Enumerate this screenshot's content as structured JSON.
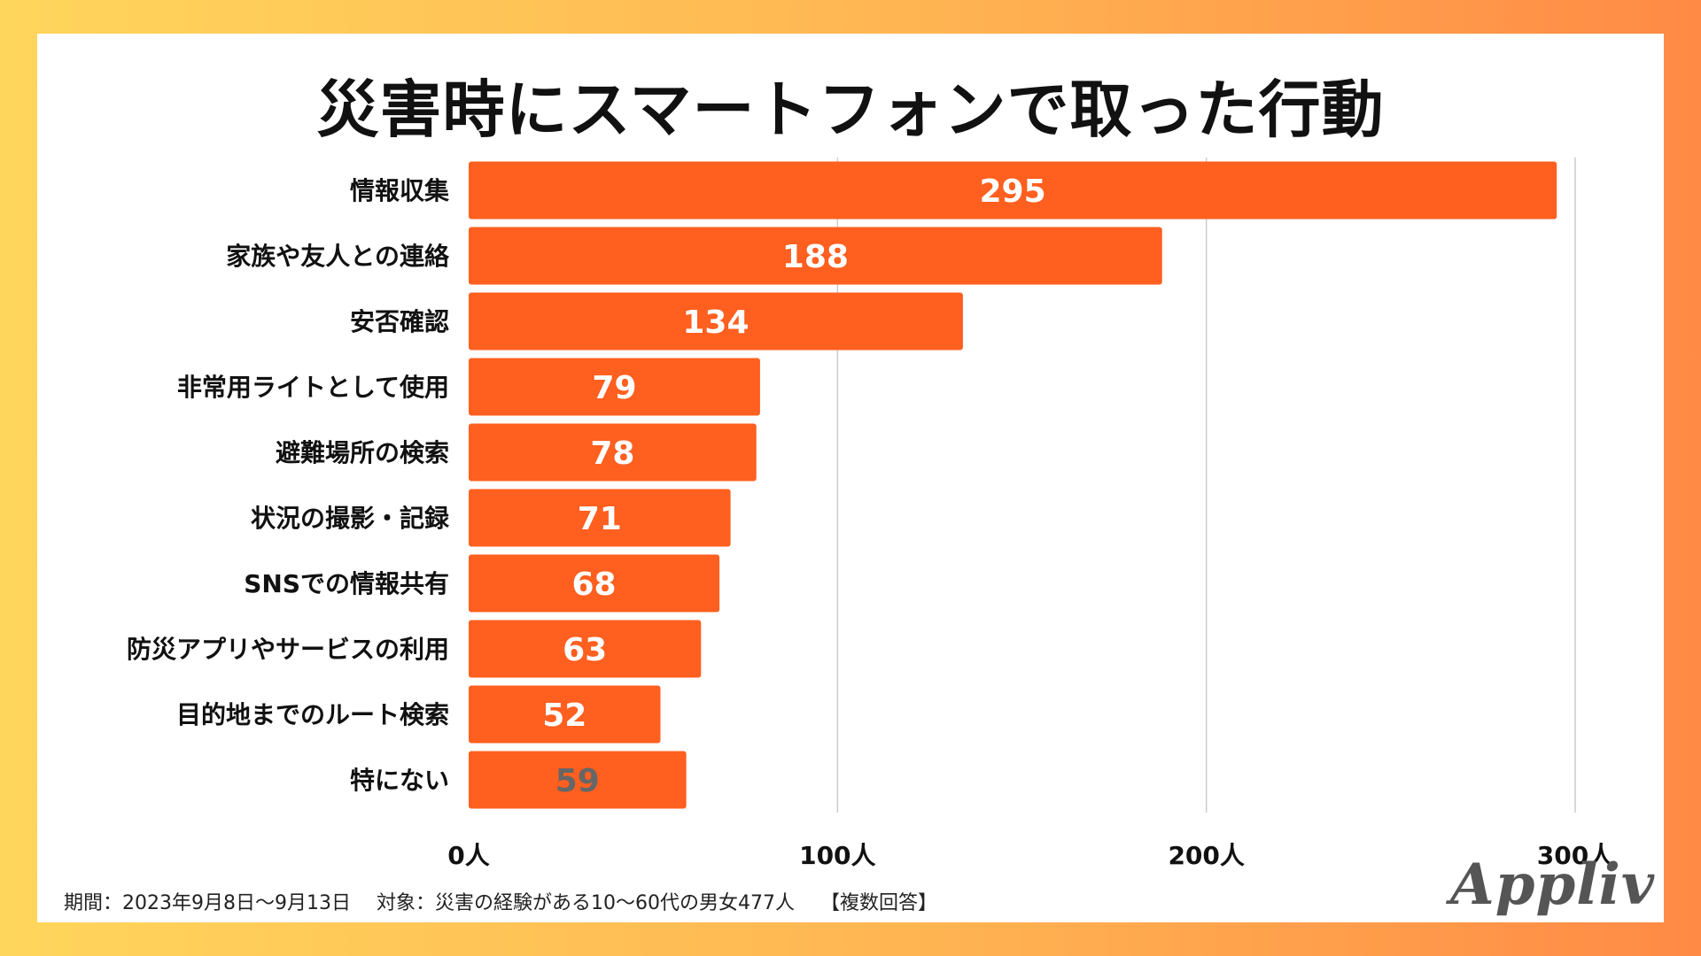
{
  "title": "災害時にスマートフォンで取った行動",
  "chart_data": {
    "type": "bar",
    "orientation": "horizontal",
    "title": "災害時にスマートフォンで取った行動",
    "categories": [
      "情報収集",
      "家族や友人との連絡",
      "安否確認",
      "非常用ライトとして使用",
      "避難場所の検索",
      "状況の撮影・記録",
      "SNSでの情報共有",
      "防災アプリやサービスの利用",
      "目的地までのルート検索",
      "特にない"
    ],
    "values": [
      295,
      188,
      134,
      79,
      78,
      71,
      68,
      63,
      52,
      59
    ],
    "xlim": [
      0,
      300
    ],
    "xticks": [
      0,
      100,
      200,
      300
    ],
    "xtick_labels": [
      "0人",
      "100人",
      "200人",
      "300人"
    ],
    "grid": true,
    "bar_color": "#ff5f1f",
    "label_color": "#ffffff",
    "last_label_color": "#666666"
  },
  "footnote": "期間：2023年9月8日〜9月13日　 対象：災害の経験がある10〜60代の男女477人　 【複数回答】",
  "logo": "Appliv"
}
